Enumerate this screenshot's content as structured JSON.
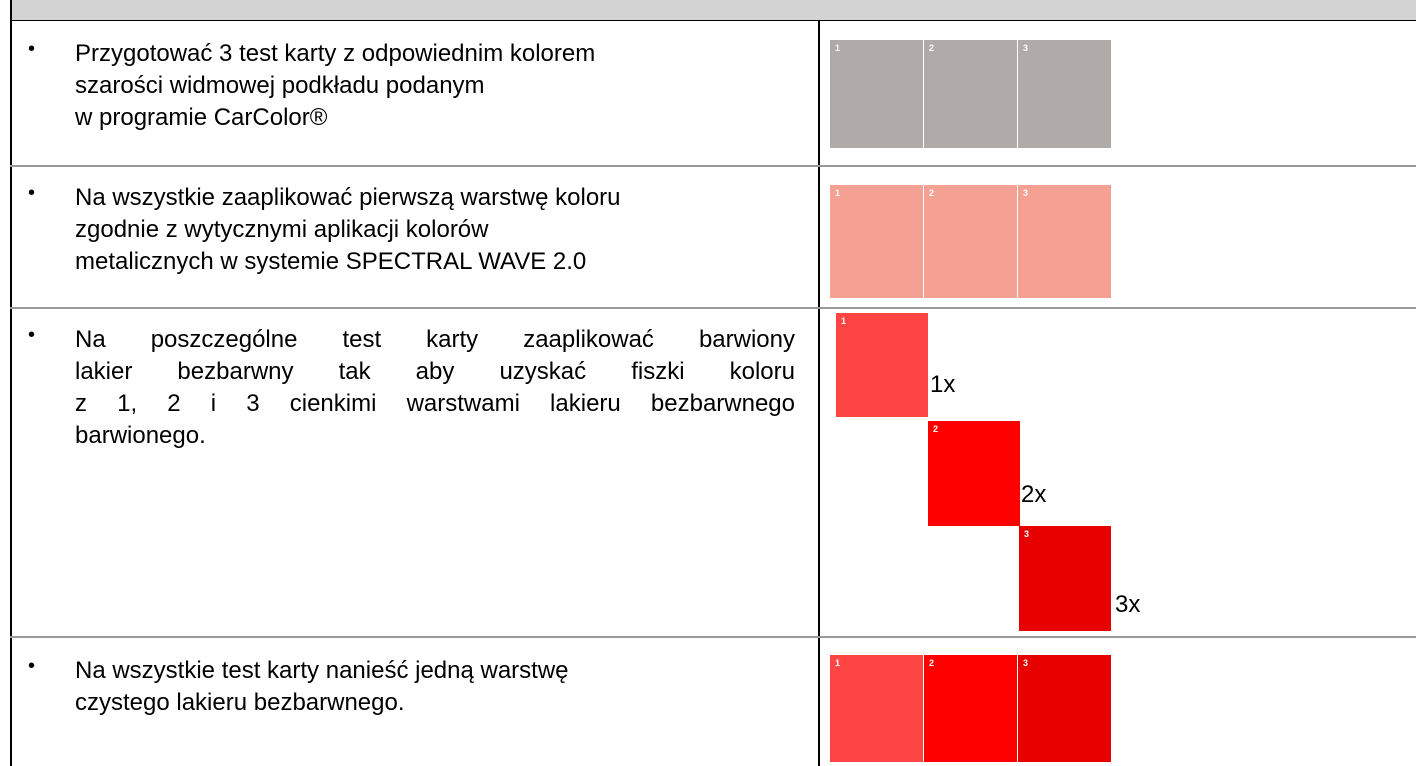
{
  "table": {
    "rows": [
      {
        "lines": [
          "Przygotować 3 test karty z odpowiednim kolorem",
          "szarości widmowej podkładu podanym",
          "w programie CarColor®"
        ],
        "cards": [
          {
            "label": "1",
            "color": "#b0aaa9"
          },
          {
            "label": "2",
            "color": "#b0aaa9"
          },
          {
            "label": "3",
            "color": "#b0aaa9"
          }
        ]
      },
      {
        "lines": [
          "Na wszystkie zaaplikować pierwszą warstwę koloru",
          "zgodnie z wytycznymi aplikacji kolorów",
          "metalicznych w systemie SPECTRAL WAVE 2.0"
        ],
        "cards": [
          {
            "label": "1",
            "color": "#f4a093"
          },
          {
            "label": "2",
            "color": "#f4a093"
          },
          {
            "label": "3",
            "color": "#f4a093"
          }
        ]
      },
      {
        "lines": [
          "Na poszczególne test karty zaaplikować barwiony",
          "lakier bezbarwny tak aby uzyskać fiszki koloru",
          "z 1, 2 i 3 cienkimi warstwami lakieru bezbarwnego",
          "barwionego."
        ],
        "cards": [
          {
            "label": "1",
            "color": "#ff4444",
            "note": "1x"
          },
          {
            "label": "2",
            "color": "#ff0000",
            "note": "2x"
          },
          {
            "label": "3",
            "color": "#e60000",
            "note": "3x"
          }
        ]
      },
      {
        "lines": [
          "Na wszystkie test karty nanieść jedną warstwę",
          "czystego lakieru bezbarwnego."
        ],
        "cards": [
          {
            "label": "1",
            "color": "#ff4444"
          },
          {
            "label": "2",
            "color": "#ff0000"
          },
          {
            "label": "3",
            "color": "#e60000"
          }
        ]
      }
    ]
  }
}
